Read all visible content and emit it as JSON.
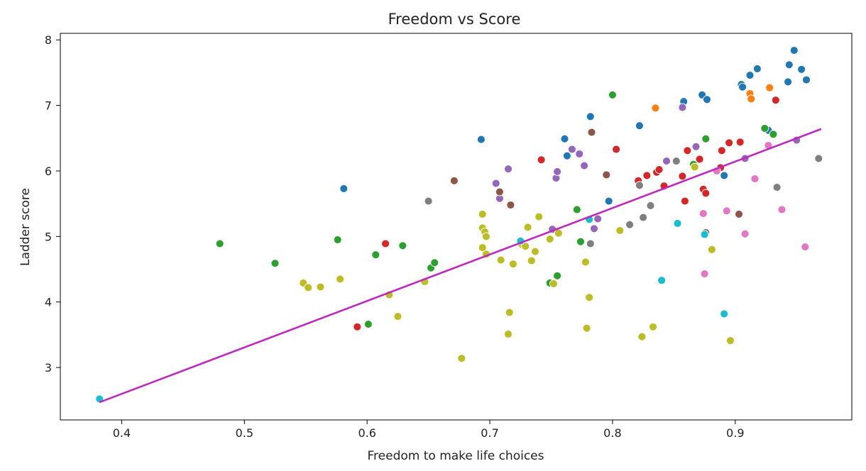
{
  "chart_data": {
    "type": "scatter",
    "title": "Freedom vs Score",
    "xlabel": "Freedom to make life choices",
    "ylabel": "Ladder score",
    "xlim": [
      0.35,
      0.995
    ],
    "ylim": [
      2.2,
      8.1
    ],
    "xticks": [
      "0.4",
      "0.5",
      "0.6",
      "0.7",
      "0.8",
      "0.9"
    ],
    "yticks": [
      "3",
      "4",
      "5",
      "6",
      "7",
      "8"
    ],
    "grid": false,
    "legend": "none",
    "trendline": {
      "color": "#bf27bf",
      "x": [
        0.382,
        0.97
      ],
      "y": [
        2.47,
        6.64
      ]
    },
    "series": [
      {
        "color": "#1f77b4",
        "points": [
          [
            0.581,
            5.73
          ],
          [
            0.693,
            6.48
          ],
          [
            0.761,
            6.49
          ],
          [
            0.763,
            6.23
          ],
          [
            0.782,
            6.83
          ],
          [
            0.797,
            5.54
          ],
          [
            0.822,
            6.69
          ],
          [
            0.858,
            7.06
          ],
          [
            0.873,
            7.16
          ],
          [
            0.877,
            7.09
          ],
          [
            0.891,
            5.93
          ],
          [
            0.905,
            7.32
          ],
          [
            0.906,
            7.28
          ],
          [
            0.912,
            7.46
          ],
          [
            0.918,
            7.56
          ],
          [
            0.927,
            6.62
          ],
          [
            0.943,
            7.36
          ],
          [
            0.944,
            7.62
          ],
          [
            0.948,
            7.84
          ],
          [
            0.954,
            7.55
          ],
          [
            0.958,
            7.39
          ]
        ]
      },
      {
        "color": "#ff7f0e",
        "points": [
          [
            0.835,
            6.96
          ],
          [
            0.912,
            7.18
          ],
          [
            0.913,
            7.1
          ],
          [
            0.928,
            7.27
          ]
        ]
      },
      {
        "color": "#2ca02c",
        "points": [
          [
            0.48,
            4.89
          ],
          [
            0.525,
            4.59
          ],
          [
            0.576,
            4.95
          ],
          [
            0.601,
            3.66
          ],
          [
            0.607,
            4.72
          ],
          [
            0.629,
            4.86
          ],
          [
            0.652,
            4.52
          ],
          [
            0.655,
            4.6
          ],
          [
            0.749,
            4.29
          ],
          [
            0.755,
            4.4
          ],
          [
            0.771,
            5.41
          ],
          [
            0.774,
            4.92
          ],
          [
            0.8,
            7.16
          ],
          [
            0.866,
            6.1
          ],
          [
            0.876,
            6.49
          ],
          [
            0.924,
            6.65
          ],
          [
            0.931,
            6.56
          ]
        ]
      },
      {
        "color": "#d62728",
        "points": [
          [
            0.592,
            3.62
          ],
          [
            0.615,
            4.89
          ],
          [
            0.742,
            6.17
          ],
          [
            0.803,
            6.33
          ],
          [
            0.821,
            5.85
          ],
          [
            0.828,
            5.93
          ],
          [
            0.836,
            5.98
          ],
          [
            0.838,
            6.02
          ],
          [
            0.842,
            5.77
          ],
          [
            0.857,
            5.92
          ],
          [
            0.859,
            5.54
          ],
          [
            0.861,
            6.31
          ],
          [
            0.871,
            6.18
          ],
          [
            0.874,
            5.72
          ],
          [
            0.876,
            5.66
          ],
          [
            0.888,
            6.05
          ],
          [
            0.889,
            6.31
          ],
          [
            0.895,
            6.43
          ],
          [
            0.904,
            6.44
          ],
          [
            0.933,
            7.08
          ]
        ]
      },
      {
        "color": "#9467bd",
        "points": [
          [
            0.705,
            5.81
          ],
          [
            0.708,
            5.58
          ],
          [
            0.715,
            6.03
          ],
          [
            0.751,
            5.11
          ],
          [
            0.754,
            5.89
          ],
          [
            0.755,
            5.99
          ],
          [
            0.767,
            6.33
          ],
          [
            0.773,
            6.26
          ],
          [
            0.777,
            6.08
          ],
          [
            0.785,
            5.12
          ],
          [
            0.788,
            5.27
          ],
          [
            0.844,
            6.15
          ],
          [
            0.857,
            6.97
          ],
          [
            0.868,
            6.37
          ],
          [
            0.908,
            6.19
          ],
          [
            0.95,
            6.47
          ]
        ]
      },
      {
        "color": "#8c564b",
        "points": [
          [
            0.671,
            5.85
          ],
          [
            0.708,
            5.68
          ],
          [
            0.717,
            5.48
          ],
          [
            0.783,
            6.59
          ],
          [
            0.795,
            5.94
          ],
          [
            0.903,
            5.34
          ]
        ]
      },
      {
        "color": "#e377c2",
        "points": [
          [
            0.874,
            5.35
          ],
          [
            0.875,
            4.43
          ],
          [
            0.885,
            6.0
          ],
          [
            0.893,
            5.39
          ],
          [
            0.908,
            5.04
          ],
          [
            0.916,
            5.88
          ],
          [
            0.927,
            6.39
          ],
          [
            0.938,
            5.41
          ],
          [
            0.957,
            4.84
          ]
        ]
      },
      {
        "color": "#7f7f7f",
        "points": [
          [
            0.65,
            5.54
          ],
          [
            0.782,
            4.89
          ],
          [
            0.814,
            5.18
          ],
          [
            0.822,
            5.78
          ],
          [
            0.825,
            5.29
          ],
          [
            0.831,
            5.47
          ],
          [
            0.852,
            6.15
          ],
          [
            0.876,
            5.06
          ],
          [
            0.934,
            5.75
          ],
          [
            0.968,
            6.19
          ]
        ]
      },
      {
        "color": "#bcbd22",
        "points": [
          [
            0.548,
            4.29
          ],
          [
            0.552,
            4.22
          ],
          [
            0.562,
            4.23
          ],
          [
            0.578,
            4.35
          ],
          [
            0.618,
            4.11
          ],
          [
            0.625,
            3.78
          ],
          [
            0.647,
            4.31
          ],
          [
            0.677,
            3.14
          ],
          [
            0.694,
            5.34
          ],
          [
            0.694,
            5.13
          ],
          [
            0.694,
            4.83
          ],
          [
            0.696,
            5.07
          ],
          [
            0.697,
            5.0
          ],
          [
            0.697,
            4.73
          ],
          [
            0.709,
            4.64
          ],
          [
            0.715,
            3.51
          ],
          [
            0.716,
            3.84
          ],
          [
            0.719,
            4.58
          ],
          [
            0.726,
            4.88
          ],
          [
            0.729,
            4.85
          ],
          [
            0.731,
            5.14
          ],
          [
            0.734,
            4.63
          ],
          [
            0.737,
            4.77
          ],
          [
            0.74,
            5.3
          ],
          [
            0.749,
            4.96
          ],
          [
            0.752,
            4.28
          ],
          [
            0.756,
            5.05
          ],
          [
            0.778,
            4.61
          ],
          [
            0.779,
            3.6
          ],
          [
            0.781,
            4.07
          ],
          [
            0.806,
            5.09
          ],
          [
            0.824,
            3.47
          ],
          [
            0.833,
            3.62
          ],
          [
            0.867,
            6.06
          ],
          [
            0.881,
            4.8
          ],
          [
            0.896,
            3.41
          ]
        ]
      },
      {
        "color": "#17becf",
        "points": [
          [
            0.382,
            2.52
          ],
          [
            0.725,
            4.93
          ],
          [
            0.781,
            5.26
          ],
          [
            0.84,
            4.33
          ],
          [
            0.853,
            5.2
          ],
          [
            0.875,
            5.03
          ],
          [
            0.891,
            3.82
          ]
        ]
      }
    ]
  }
}
